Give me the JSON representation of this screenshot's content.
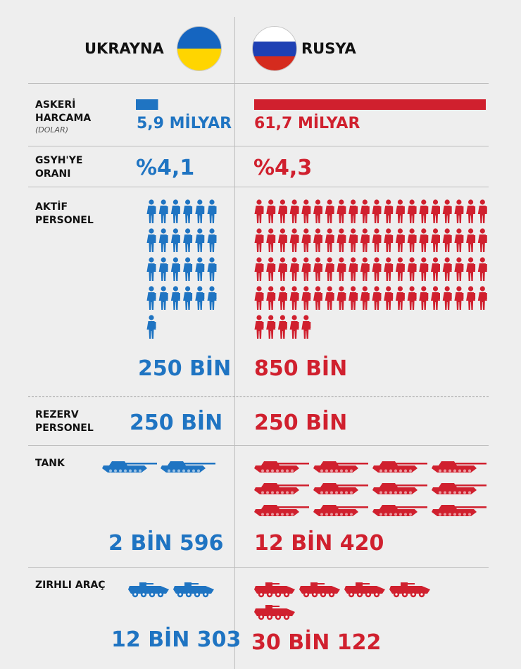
{
  "header": {
    "ukraine": "UKRAYNA",
    "russia": "RUSYA",
    "ukraine_flag_colors": [
      "#1565c0",
      "#ffd500"
    ],
    "russia_flag_colors": [
      "#ffffff",
      "#1e40b4",
      "#d52b1e"
    ]
  },
  "colors": {
    "ukraine": "#1f74c2",
    "russia": "#d0202e"
  },
  "rows": {
    "spending": {
      "label_line1": "ASKERİ",
      "label_line2": "HARCAMA",
      "label_sub": "(DOLAR)",
      "ukraine": "5,9 MİLYAR",
      "russia": "61,7 MİLYAR"
    },
    "gdp": {
      "label_line1": "GSYH'YE",
      "label_line2": "ORANI",
      "ukraine": "%4,1",
      "russia": "%4,3"
    },
    "active": {
      "label_line1": "AKTİF",
      "label_line2": "PERSONEL",
      "ukraine": "250 BİN",
      "russia": "850 BİN"
    },
    "reserve": {
      "label_line1": "REZERV",
      "label_line2": "PERSONEL",
      "ukraine": "250 BİN",
      "russia": "250 BİN"
    },
    "tank": {
      "label": "TANK",
      "ukraine": "2 BİN 596",
      "russia": "12 BİN 420"
    },
    "armored": {
      "label": "ZIRHLI ARAÇ",
      "ukraine": "12 BİN 303",
      "russia": "30 BİN 122"
    }
  },
  "chart_data": {
    "type": "bar",
    "categories": [
      "ASKERİ HARCAMA",
      "GSYH'YE ORANI",
      "AKTİF PERSONEL",
      "REZERV PERSONEL",
      "TANK",
      "ZIRHLI ARAÇ"
    ],
    "series": [
      {
        "name": "UKRAYNA",
        "values": [
          5.9,
          4.1,
          250000,
          250000,
          2596,
          12303
        ]
      },
      {
        "name": "RUSYA",
        "values": [
          61.7,
          4.3,
          850000,
          250000,
          12420,
          30122
        ]
      }
    ],
    "icon_units": {
      "AKTİF PERSONEL": {
        "ukraine": 25,
        "russia": 85
      },
      "TANK": {
        "ukraine": 2,
        "russia": 12
      },
      "ZIRHLI ARAÇ": {
        "ukraine": 2,
        "russia": 5
      }
    }
  }
}
